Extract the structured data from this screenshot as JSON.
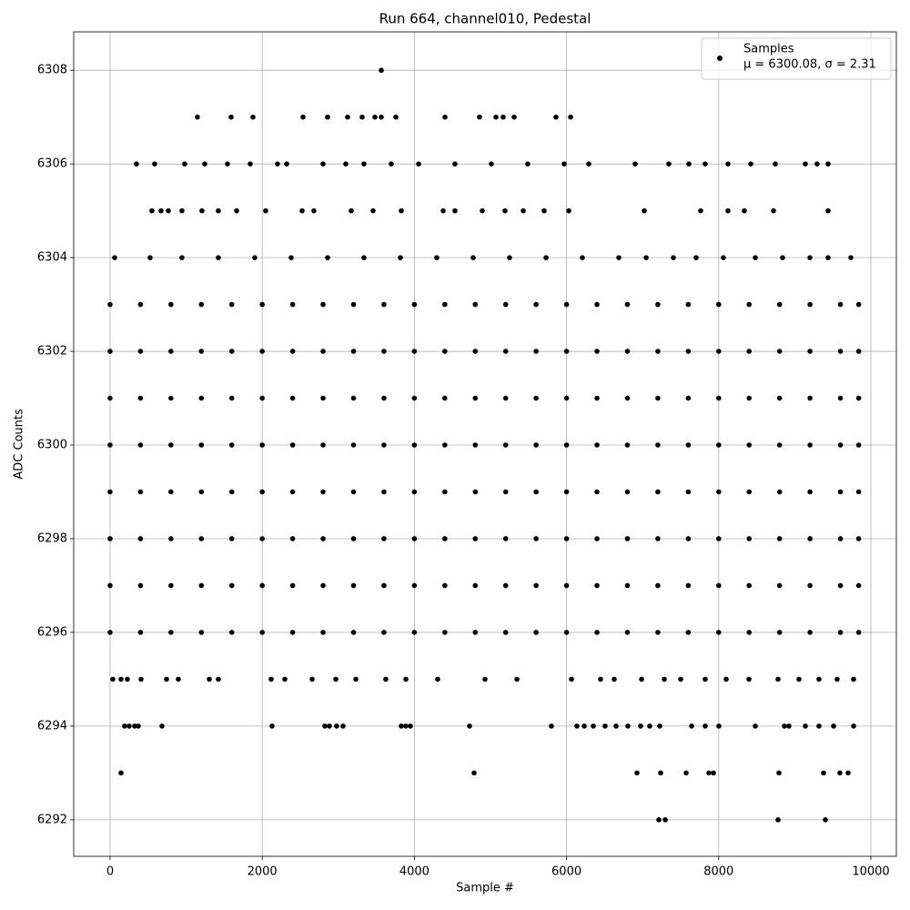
{
  "chart_data": {
    "type": "scatter",
    "title": "Run 664, channel010, Pedestal",
    "xlabel": "Sample #",
    "ylabel": "ADC Counts",
    "xlim": [
      -478,
      10335
    ],
    "ylim": [
      6291.22,
      6308.82
    ],
    "xticks": [
      0,
      2000,
      4000,
      6000,
      8000,
      10000
    ],
    "yticks": [
      6292,
      6294,
      6296,
      6298,
      6300,
      6302,
      6304,
      6306,
      6308
    ],
    "grid": true,
    "legend_position": "upper right",
    "annotation": "μ = 6300.08, σ = 2.31",
    "series": [
      {
        "name": "Samples",
        "color": "#000000",
        "x": [
          3565,
          1148,
          1591,
          1878,
          2536,
          2859,
          3122,
          3313,
          3481,
          3565,
          3756,
          4402,
          4856,
          5072,
          5167,
          5311,
          5861,
          6053,
          347,
          586,
          981,
          1244,
          1543,
          1842,
          2201,
          2321,
          2799,
          3098,
          3337,
          3696,
          4055,
          4533,
          5012,
          5490,
          5969,
          6292,
          6902,
          7344,
          7608,
          7823,
          8122,
          8421,
          8744,
          9139,
          9294,
          9438,
          550,
          670,
          766,
          945,
          1208,
          1423,
          1663,
          2045,
          2524,
          2679,
          3170,
          3457,
          3828,
          4378,
          4533,
          4892,
          5191,
          5431,
          5706,
          6029,
          7022,
          7763,
          8122,
          8337,
          8720,
          9438,
          60,
          526,
          945,
          1423,
          1902,
          2380,
          2859,
          3337,
          3816,
          4294,
          4773,
          5251,
          5730,
          6208,
          6687,
          7046,
          7404,
          7703,
          8062,
          8481,
          8840,
          9199,
          9438,
          9737,
          0,
          400,
          800,
          1200,
          1600,
          2000,
          2400,
          2800,
          3200,
          3600,
          4000,
          4400,
          4800,
          5200,
          5600,
          6000,
          6400,
          6800,
          7200,
          7600,
          8000,
          8400,
          8800,
          9200,
          9600,
          9840,
          0,
          400,
          800,
          1200,
          1600,
          2000,
          2400,
          2800,
          3200,
          3600,
          4000,
          4400,
          4800,
          5200,
          5600,
          6000,
          6400,
          6800,
          7200,
          7600,
          8000,
          8400,
          8800,
          9200,
          9600,
          9840,
          0,
          400,
          800,
          1200,
          1600,
          2000,
          2400,
          2800,
          3200,
          3600,
          4000,
          4400,
          4800,
          5200,
          5600,
          6000,
          6400,
          6800,
          7200,
          7600,
          8000,
          8400,
          8800,
          9200,
          9600,
          9840,
          0,
          400,
          800,
          1200,
          1600,
          2000,
          2400,
          2800,
          3200,
          3600,
          4000,
          4400,
          4800,
          5200,
          5600,
          6000,
          6400,
          6800,
          7200,
          7600,
          8000,
          8400,
          8800,
          9200,
          9600,
          9840,
          0,
          400,
          800,
          1200,
          1600,
          2000,
          2400,
          2800,
          3200,
          3600,
          4000,
          4400,
          4800,
          5200,
          5600,
          6000,
          6400,
          6800,
          7200,
          7600,
          8000,
          8400,
          8800,
          9200,
          9600,
          9840,
          0,
          400,
          800,
          1200,
          1600,
          2000,
          2400,
          2800,
          3200,
          3600,
          4000,
          4400,
          4800,
          5200,
          5600,
          6000,
          6400,
          6800,
          7200,
          7600,
          8000,
          8400,
          8800,
          9200,
          9600,
          9840,
          0,
          400,
          800,
          1200,
          1600,
          2000,
          2400,
          2800,
          3200,
          3600,
          4000,
          4400,
          4800,
          5200,
          5600,
          6000,
          6400,
          6800,
          7200,
          7600,
          8000,
          8400,
          8800,
          9200,
          9600,
          9840,
          0,
          400,
          800,
          1200,
          1600,
          2000,
          2400,
          2800,
          3200,
          3600,
          4000,
          4400,
          4800,
          5200,
          5600,
          6000,
          6400,
          6800,
          7200,
          7600,
          8000,
          8400,
          8800,
          9200,
          9600,
          9840,
          36,
          144,
          227,
          407,
          742,
          897,
          1304,
          1423,
          2117,
          2297,
          2656,
          2967,
          3230,
          3624,
          3888,
          4306,
          4928,
          5347,
          6065,
          6447,
          6627,
          6986,
          7285,
          7500,
          7823,
          8098,
          8397,
          8780,
          9055,
          9318,
          9557,
          9773,
          191,
          251,
          323,
          371,
          682,
          2129,
          2823,
          2883,
          2978,
          3062,
          3828,
          3888,
          3947,
          4725,
          5801,
          6136,
          6232,
          6352,
          6507,
          6651,
          6806,
          6974,
          7093,
          7225,
          7644,
          7823,
          8002,
          8481,
          8864,
          8923,
          9139,
          9318,
          9510,
          9773,
          144,
          4785,
          6926,
          7237,
          7572,
          7871,
          7931,
          8792,
          9378,
          9593,
          9701,
          7213,
          7297,
          8780,
          9402
        ],
        "values": [
          6308,
          6307,
          6307,
          6307,
          6307,
          6307,
          6307,
          6307,
          6307,
          6307,
          6307,
          6307,
          6307,
          6307,
          6307,
          6307,
          6307,
          6307,
          6306,
          6306,
          6306,
          6306,
          6306,
          6306,
          6306,
          6306,
          6306,
          6306,
          6306,
          6306,
          6306,
          6306,
          6306,
          6306,
          6306,
          6306,
          6306,
          6306,
          6306,
          6306,
          6306,
          6306,
          6306,
          6306,
          6306,
          6306,
          6305,
          6305,
          6305,
          6305,
          6305,
          6305,
          6305,
          6305,
          6305,
          6305,
          6305,
          6305,
          6305,
          6305,
          6305,
          6305,
          6305,
          6305,
          6305,
          6305,
          6305,
          6305,
          6305,
          6305,
          6305,
          6305,
          6304,
          6304,
          6304,
          6304,
          6304,
          6304,
          6304,
          6304,
          6304,
          6304,
          6304,
          6304,
          6304,
          6304,
          6304,
          6304,
          6304,
          6304,
          6304,
          6304,
          6304,
          6304,
          6304,
          6304,
          6303,
          6303,
          6303,
          6303,
          6303,
          6303,
          6303,
          6303,
          6303,
          6303,
          6303,
          6303,
          6303,
          6303,
          6303,
          6303,
          6303,
          6303,
          6303,
          6303,
          6303,
          6303,
          6303,
          6303,
          6303,
          6303,
          6302,
          6302,
          6302,
          6302,
          6302,
          6302,
          6302,
          6302,
          6302,
          6302,
          6302,
          6302,
          6302,
          6302,
          6302,
          6302,
          6302,
          6302,
          6302,
          6302,
          6302,
          6302,
          6302,
          6302,
          6302,
          6302,
          6301,
          6301,
          6301,
          6301,
          6301,
          6301,
          6301,
          6301,
          6301,
          6301,
          6301,
          6301,
          6301,
          6301,
          6301,
          6301,
          6301,
          6301,
          6301,
          6301,
          6301,
          6301,
          6301,
          6301,
          6301,
          6301,
          6300,
          6300,
          6300,
          6300,
          6300,
          6300,
          6300,
          6300,
          6300,
          6300,
          6300,
          6300,
          6300,
          6300,
          6300,
          6300,
          6300,
          6300,
          6300,
          6300,
          6300,
          6300,
          6300,
          6300,
          6300,
          6300,
          6299,
          6299,
          6299,
          6299,
          6299,
          6299,
          6299,
          6299,
          6299,
          6299,
          6299,
          6299,
          6299,
          6299,
          6299,
          6299,
          6299,
          6299,
          6299,
          6299,
          6299,
          6299,
          6299,
          6299,
          6299,
          6299,
          6298,
          6298,
          6298,
          6298,
          6298,
          6298,
          6298,
          6298,
          6298,
          6298,
          6298,
          6298,
          6298,
          6298,
          6298,
          6298,
          6298,
          6298,
          6298,
          6298,
          6298,
          6298,
          6298,
          6298,
          6298,
          6298,
          6297,
          6297,
          6297,
          6297,
          6297,
          6297,
          6297,
          6297,
          6297,
          6297,
          6297,
          6297,
          6297,
          6297,
          6297,
          6297,
          6297,
          6297,
          6297,
          6297,
          6297,
          6297,
          6297,
          6297,
          6297,
          6297,
          6296,
          6296,
          6296,
          6296,
          6296,
          6296,
          6296,
          6296,
          6296,
          6296,
          6296,
          6296,
          6296,
          6296,
          6296,
          6296,
          6296,
          6296,
          6296,
          6296,
          6296,
          6296,
          6296,
          6296,
          6296,
          6296,
          6295,
          6295,
          6295,
          6295,
          6295,
          6295,
          6295,
          6295,
          6295,
          6295,
          6295,
          6295,
          6295,
          6295,
          6295,
          6295,
          6295,
          6295,
          6295,
          6295,
          6295,
          6295,
          6295,
          6295,
          6295,
          6295,
          6295,
          6295,
          6295,
          6295,
          6295,
          6295,
          6294,
          6294,
          6294,
          6294,
          6294,
          6294,
          6294,
          6294,
          6294,
          6294,
          6294,
          6294,
          6294,
          6294,
          6294,
          6294,
          6294,
          6294,
          6294,
          6294,
          6294,
          6294,
          6294,
          6294,
          6294,
          6294,
          6294,
          6294,
          6294,
          6294,
          6294,
          6294,
          6294,
          6294,
          6293,
          6293,
          6293,
          6293,
          6293,
          6293,
          6293,
          6293,
          6293,
          6293,
          6293,
          6292,
          6292,
          6292,
          6292
        ]
      }
    ]
  }
}
